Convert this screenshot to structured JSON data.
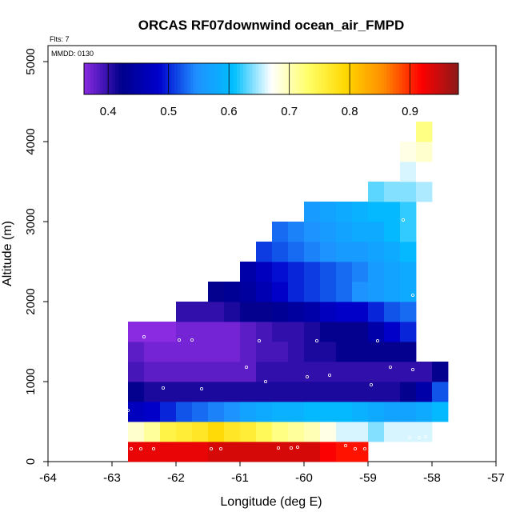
{
  "chart_data": {
    "type": "heatmap",
    "title": "ORCAS RF07downwind ocean_air_FMPD",
    "flights_label": "Flts: 7",
    "date_label": "MMDD: 0130",
    "xlabel": "Longitude (deg E)",
    "ylabel": "Altitude (m)",
    "xlim": [
      -64,
      -57
    ],
    "ylim": [
      0,
      5200
    ],
    "x_ticks": [
      -64,
      -63,
      -62,
      -61,
      -60,
      -59,
      -58,
      -57
    ],
    "y_ticks": [
      0,
      1000,
      2000,
      3000,
      4000,
      5000
    ],
    "grid": false,
    "colorbar": {
      "range": [
        0.36,
        0.98
      ],
      "ticks": [
        0.4,
        0.5,
        0.6,
        0.7,
        0.8,
        0.9
      ],
      "placement": "top-inside",
      "palette": [
        "#8a2be2",
        "#00008b",
        "#0000cd",
        "#1e90ff",
        "#00bfff",
        "#ffffff",
        "#ffff66",
        "#ffd700",
        "#ff8c00",
        "#ff0000",
        "#8b1a1a"
      ]
    },
    "cell_size": {
      "lon": 0.25,
      "alt": 250
    },
    "rows": [
      {
        "alt": 0,
        "lon_start": -62.75,
        "values": [
          0.93,
          0.93,
          0.93,
          0.93,
          0.93,
          0.94,
          0.94,
          0.94,
          0.94,
          0.94,
          0.94,
          0.94,
          0.92,
          0.91,
          0.91
        ]
      },
      {
        "alt": 250,
        "lon_start": -62.75,
        "values": [
          0.69,
          0.71,
          0.75,
          0.76,
          0.77,
          0.79,
          0.77,
          0.76,
          0.74,
          0.72,
          0.71,
          0.7,
          0.68,
          0.66,
          0.66,
          0.64,
          0.66,
          0.66,
          0.66
        ]
      },
      {
        "alt": 500,
        "lon_start": -62.75,
        "values": [
          0.47,
          0.48,
          0.5,
          0.52,
          0.53,
          0.54,
          0.55,
          0.57,
          0.58,
          0.59,
          0.59,
          0.6,
          0.6,
          0.6,
          0.59,
          0.58,
          0.57,
          0.57,
          0.58,
          0.6
        ]
      },
      {
        "alt": 750,
        "lon_start": -62.75,
        "values": [
          0.42,
          0.41,
          0.41,
          0.41,
          0.41,
          0.41,
          0.41,
          0.41,
          0.41,
          0.41,
          0.41,
          0.41,
          0.41,
          0.41,
          0.41,
          0.41,
          0.41,
          0.42,
          0.45,
          0.52
        ]
      },
      {
        "alt": 1000,
        "lon_start": -62.75,
        "values": [
          0.39,
          0.38,
          0.38,
          0.38,
          0.38,
          0.38,
          0.38,
          0.38,
          0.4,
          0.4,
          0.4,
          0.4,
          0.4,
          0.4,
          0.4,
          0.4,
          0.4,
          0.4,
          0.4,
          0.42
        ]
      },
      {
        "alt": 1250,
        "lon_start": -62.75,
        "values": [
          0.38,
          0.37,
          0.37,
          0.37,
          0.37,
          0.37,
          0.37,
          0.38,
          0.39,
          0.39,
          0.4,
          0.41,
          0.41,
          0.42,
          0.42,
          0.42,
          0.42,
          0.42
        ]
      },
      {
        "alt": 1500,
        "lon_start": -62.75,
        "values": [
          0.36,
          0.36,
          0.36,
          0.37,
          0.37,
          0.37,
          0.37,
          0.38,
          0.39,
          0.4,
          0.4,
          0.41,
          0.42,
          0.42,
          0.42,
          0.45,
          0.48,
          0.5
        ]
      },
      {
        "alt": 1750,
        "lon_start": -62.0,
        "values": [
          0.4,
          0.4,
          0.4,
          0.41,
          0.42,
          0.42,
          0.43,
          0.44,
          0.45,
          0.47,
          0.48,
          0.48,
          0.5,
          0.52,
          0.53
        ]
      },
      {
        "alt": 2000,
        "lon_start": -61.5,
        "values": [
          0.42,
          0.43,
          0.44,
          0.46,
          0.48,
          0.5,
          0.51,
          0.52,
          0.53,
          0.55,
          0.56,
          0.57,
          0.58
        ]
      },
      {
        "alt": 2250,
        "lon_start": -61.0,
        "values": [
          0.45,
          0.47,
          0.49,
          0.5,
          0.51,
          0.52,
          0.53,
          0.54,
          0.56,
          0.57,
          0.58
        ]
      },
      {
        "alt": 2500,
        "lon_start": -60.75,
        "values": [
          0.51,
          0.52,
          0.53,
          0.54,
          0.55,
          0.56,
          0.56,
          0.57,
          0.58,
          0.6
        ]
      },
      {
        "alt": 2750,
        "lon_start": -60.5,
        "values": [
          0.53,
          0.54,
          0.55,
          0.56,
          0.57,
          0.58,
          0.58,
          0.6,
          0.62
        ]
      },
      {
        "alt": 3000,
        "lon_start": -60.0,
        "values": [
          0.56,
          0.57,
          0.58,
          0.59,
          0.6,
          0.6,
          0.62
        ]
      },
      {
        "alt": 3250,
        "lon_start": -59.0,
        "values": [
          0.63,
          0.64,
          0.64,
          0.65
        ]
      },
      {
        "alt": 3500,
        "lon_start": -58.5,
        "values": [
          0.66,
          0.67
        ]
      },
      {
        "alt": 3750,
        "lon_start": -58.5,
        "values": [
          0.68,
          0.69
        ]
      },
      {
        "alt": 4000,
        "lon_start": -58.25,
        "values": [
          0.72
        ]
      }
    ],
    "sample_points": [
      [
        -62.7,
        160
      ],
      [
        -62.55,
        160
      ],
      [
        -62.35,
        160
      ],
      [
        -61.45,
        160
      ],
      [
        -61.3,
        160
      ],
      [
        -60.4,
        170
      ],
      [
        -60.2,
        170
      ],
      [
        -60.1,
        180
      ],
      [
        -59.35,
        200
      ],
      [
        -59.2,
        160
      ],
      [
        -59.05,
        160
      ],
      [
        -58.35,
        300
      ],
      [
        -58.2,
        300
      ],
      [
        -58.1,
        310
      ],
      [
        -62.75,
        640
      ],
      [
        -62.2,
        920
      ],
      [
        -61.6,
        910
      ],
      [
        -60.9,
        1180
      ],
      [
        -60.6,
        1000
      ],
      [
        -59.95,
        1060
      ],
      [
        -59.6,
        1080
      ],
      [
        -58.95,
        960
      ],
      [
        -58.65,
        1180
      ],
      [
        -58.3,
        1150
      ],
      [
        -62.5,
        1560
      ],
      [
        -61.95,
        1520
      ],
      [
        -61.75,
        1520
      ],
      [
        -60.7,
        1510
      ],
      [
        -59.8,
        1510
      ],
      [
        -58.85,
        1510
      ],
      [
        -58.3,
        2080
      ],
      [
        -58.45,
        3020
      ]
    ]
  }
}
